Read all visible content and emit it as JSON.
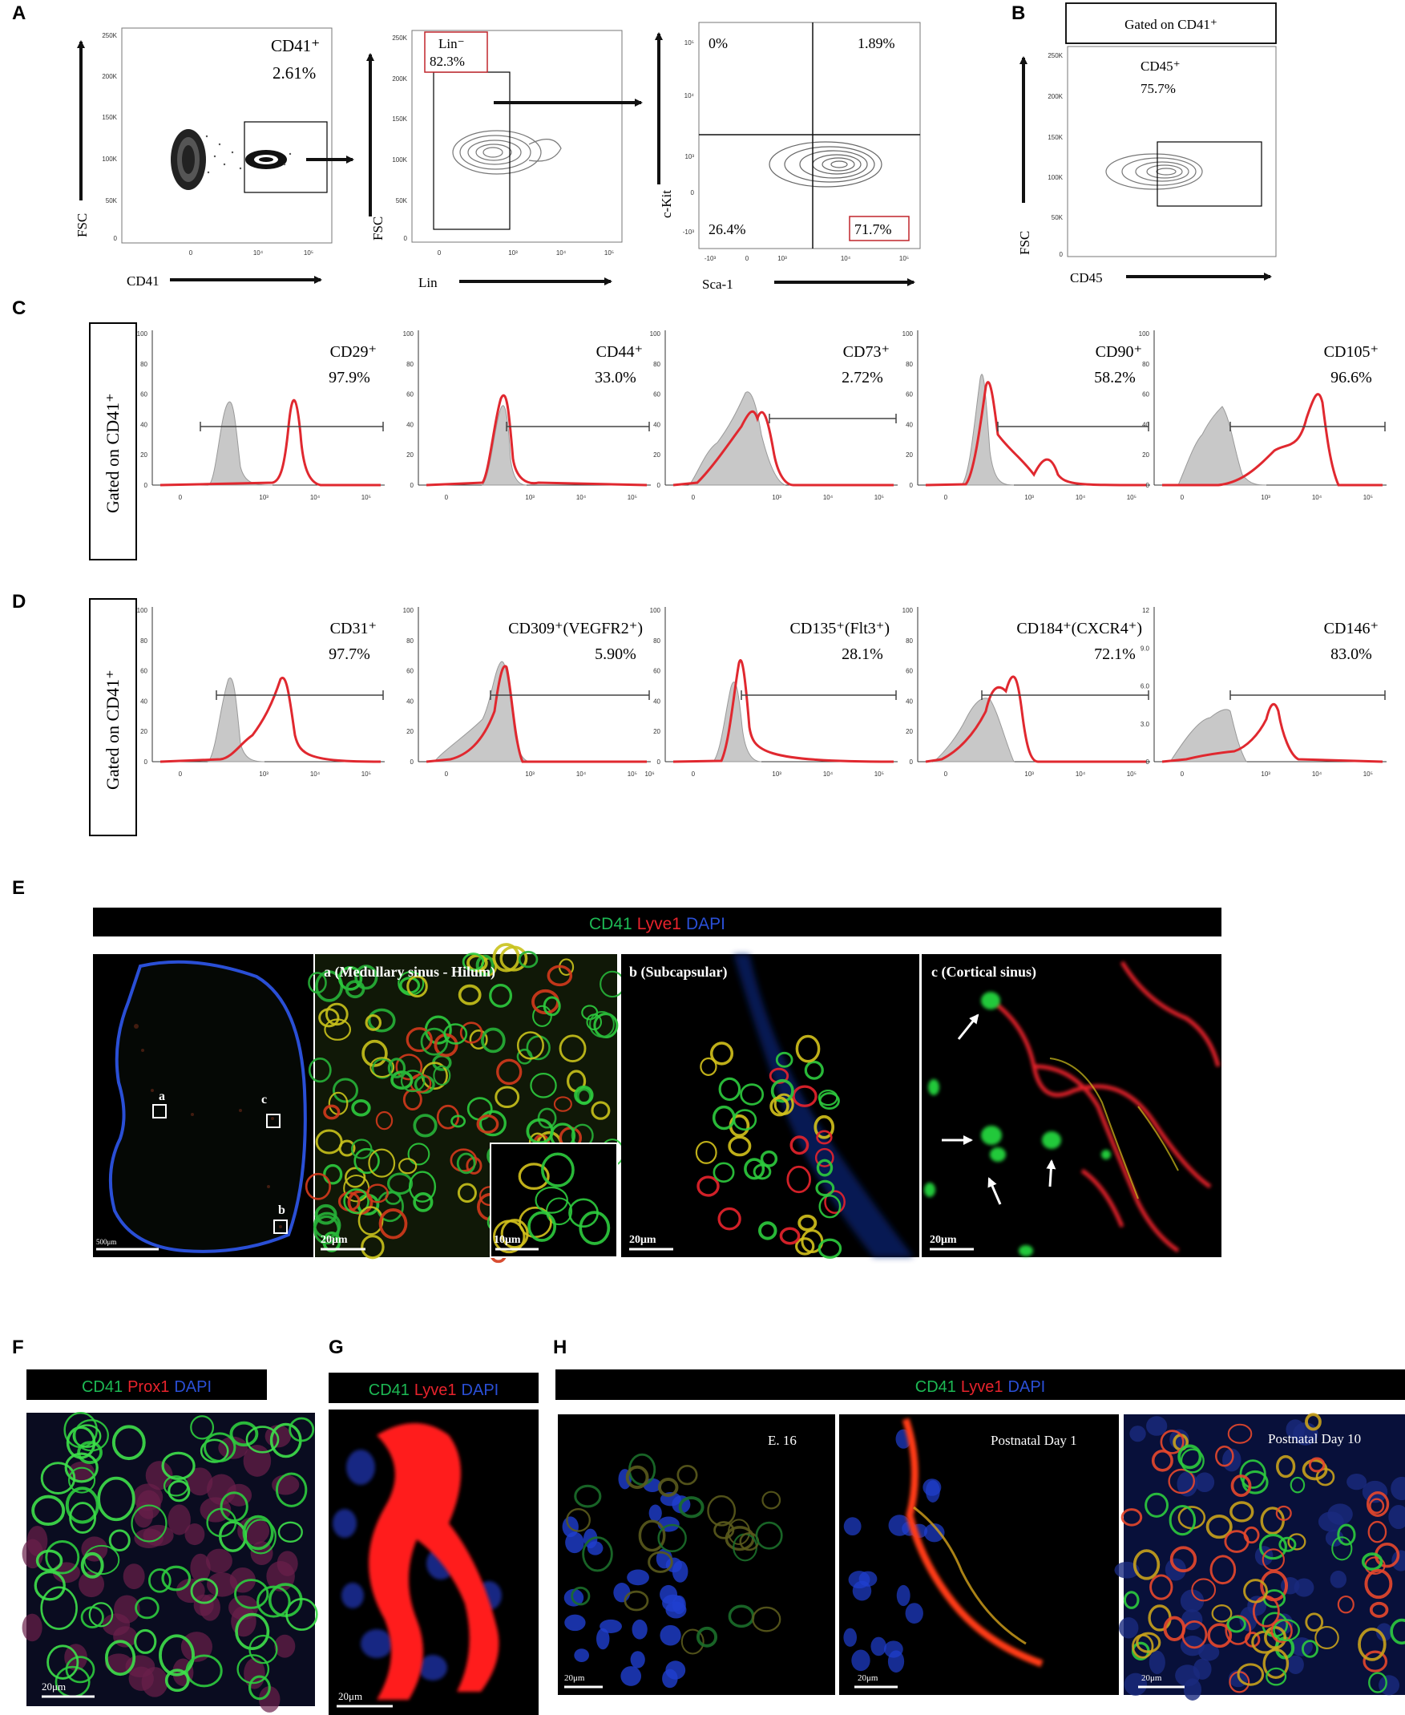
{
  "panel_letters": {
    "A": "A",
    "B": "B",
    "C": "C",
    "D": "D",
    "E": "E",
    "F": "F",
    "G": "G",
    "H": "H"
  },
  "panelA": {
    "plot1": {
      "x_axis": "CD41",
      "y_axis": "FSC",
      "gate_name": "CD41⁺",
      "gate_pct": "2.61%",
      "yticks": [
        "250K",
        "200K",
        "150K",
        "100K",
        "50K",
        "0"
      ],
      "xticks": [
        "0",
        "10⁴",
        "10⁵"
      ]
    },
    "plot2": {
      "x_axis": "Lin",
      "y_axis": "FSC",
      "gate_name": "Lin⁻",
      "gate_pct": "82.3%",
      "yticks": [
        "250K",
        "200K",
        "150K",
        "100K",
        "50K",
        "0"
      ],
      "xticks": [
        "0",
        "10³",
        "10⁴",
        "10⁵"
      ]
    },
    "plot3": {
      "x_axis": "Sca-1",
      "y_axis": "c-Kit",
      "q_ul": "0%",
      "q_ur": "1.89%",
      "q_ll": "26.4%",
      "q_lr": "71.7%",
      "yticks": [
        "10⁵",
        "10⁴",
        "10³",
        "0",
        "-10³"
      ],
      "xticks": [
        "-10³",
        "0",
        "10³",
        "10⁴",
        "10⁵"
      ]
    }
  },
  "panelB": {
    "header": "Gated on CD41⁺",
    "x_axis": "CD45",
    "y_axis": "FSC",
    "gate_name": "CD45⁺",
    "gate_pct": "75.7%",
    "yticks": [
      "250K",
      "200K",
      "150K",
      "100K",
      "50K",
      "0"
    ]
  },
  "panelC": {
    "side_label": "Gated on CD41⁺",
    "yticks": [
      "100",
      "80",
      "60",
      "40",
      "20",
      "0"
    ],
    "markers": [
      {
        "name": "CD29⁺",
        "pct": "97.9%"
      },
      {
        "name": "CD44⁺",
        "pct": "33.0%"
      },
      {
        "name": "CD73⁺",
        "pct": "2.72%"
      },
      {
        "name": "CD90⁺",
        "pct": "58.2%"
      },
      {
        "name": "CD105⁺",
        "pct": "96.6%"
      }
    ],
    "xticks": [
      "0",
      "10³",
      "10⁴",
      "10⁵"
    ]
  },
  "panelD": {
    "side_label": "Gated on CD41⁺",
    "yticks": [
      "100",
      "80",
      "60",
      "40",
      "20",
      "0"
    ],
    "yticks_last": [
      "12",
      "9.0",
      "6.0",
      "3.0",
      "0"
    ],
    "markers": [
      {
        "name": "CD31⁺",
        "pct": "97.7%"
      },
      {
        "name": "CD309⁺(VEGFR2⁺)",
        "pct": "5.90%"
      },
      {
        "name": "CD135⁺(Flt3⁺)",
        "pct": "28.1%"
      },
      {
        "name": "CD184⁺(CXCR4⁺)",
        "pct": "72.1%"
      },
      {
        "name": "CD146⁺",
        "pct": "83.0%"
      }
    ],
    "xticks": [
      "0",
      "10³",
      "10⁴",
      "10⁵"
    ],
    "xticks_b": [
      "0",
      "10³",
      "10⁴",
      "10⁵",
      "10⁶"
    ]
  },
  "panelE": {
    "legend": {
      "green": "CD41",
      "red": "Lyve1",
      "blue": "DAPI"
    },
    "overview_scale": "500μm",
    "roi": {
      "a": "a",
      "b": "b",
      "c": "c"
    },
    "sub": [
      {
        "title": "a (Medullary sinus - Hilum)",
        "scale": "20μm",
        "inset_scale": "10μm"
      },
      {
        "title": "b (Subcapsular)",
        "scale": "20μm"
      },
      {
        "title": "c (Cortical sinus)",
        "scale": "20μm"
      }
    ]
  },
  "panelF": {
    "legend": {
      "green": "CD41",
      "red": "Prox1",
      "blue": "DAPI"
    },
    "scale": "20μm"
  },
  "panelG": {
    "legend": {
      "green": "CD41",
      "red": "Lyve1",
      "blue": "DAPI"
    },
    "scale": "20μm"
  },
  "panelH": {
    "legend": {
      "green": "CD41",
      "red": "Lyve1",
      "blue": "DAPI"
    },
    "images": [
      {
        "label": "E. 16",
        "scale": "20μm"
      },
      {
        "label": "Postnatal Day 1",
        "scale": "20μm"
      },
      {
        "label": "Postnatal Day 10",
        "scale": "20μm"
      }
    ]
  },
  "colors": {
    "green": "#1db954",
    "red": "#e8232c",
    "blue": "#2a4fd6",
    "histogram_fill": "#c8c8c8",
    "histogram_red": "#e0282f",
    "gate_red": "#c0252b"
  }
}
